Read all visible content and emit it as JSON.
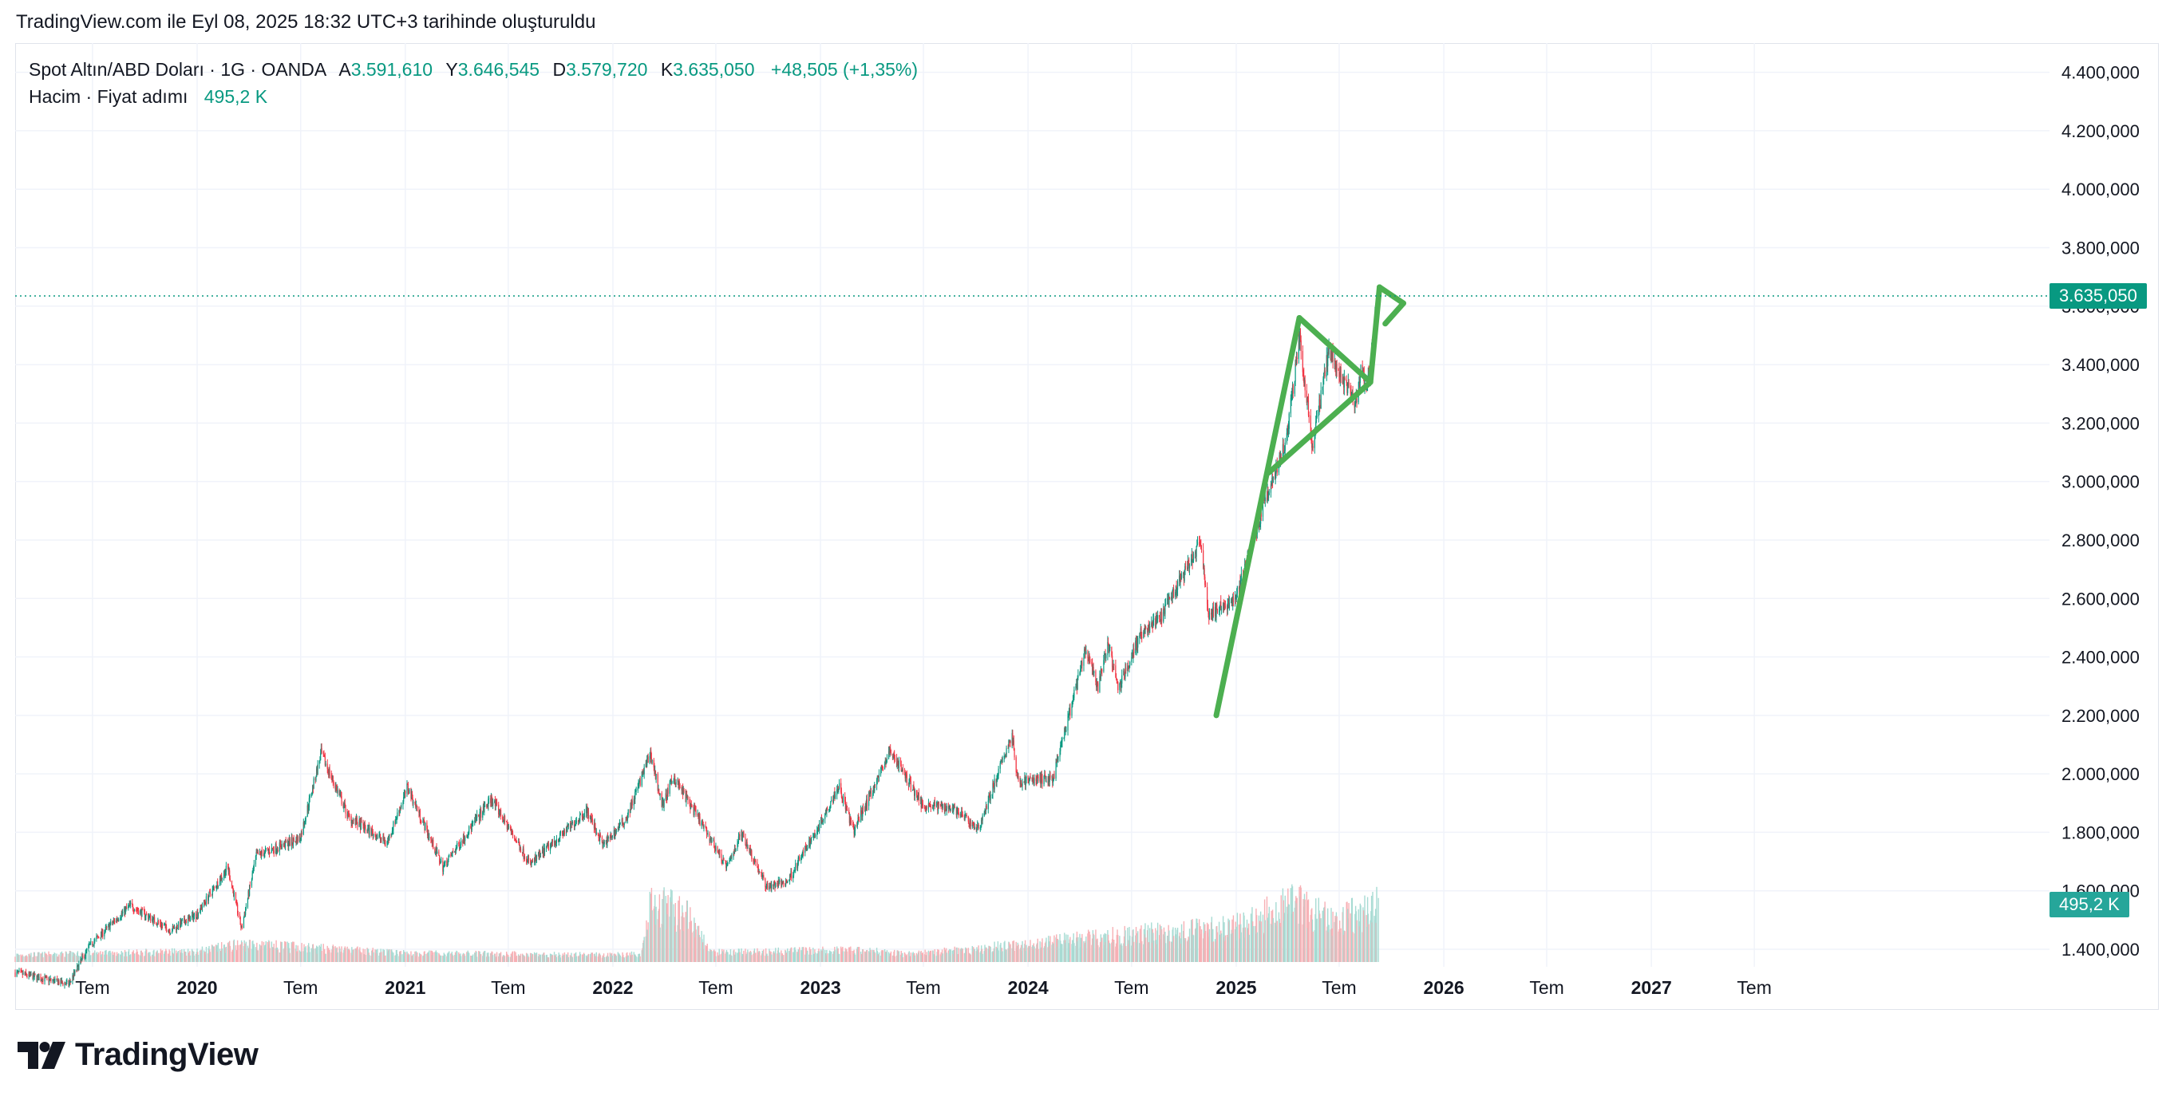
{
  "caption": "TradingView.com ile Eyl 08, 2025 18:32 UTC+3 tarihinde oluşturuldu",
  "legend": {
    "symbol": "Spot Altın/ABD Doları · 1G · OANDA",
    "open_label": "A",
    "open_value": "3.591,610",
    "high_label": "Y",
    "high_value": "3.646,545",
    "low_label": "D",
    "low_value": "3.579,720",
    "close_label": "K",
    "close_value": "3.635,050",
    "change": "+48,505 (+1,35%)",
    "volume_label": "Hacim · Fiyat adımı",
    "volume_value": "495,2 K"
  },
  "price_tag": "3.635,050",
  "volume_tag": "495,2 K",
  "brand": "TradingView",
  "colors": {
    "up": "#089981",
    "down": "#f23645",
    "volume_up": "#a7dbd3",
    "volume_down": "#f7b0b5",
    "drawing": "#4caf50",
    "grid": "#f0f3fa",
    "text": "#131722"
  },
  "chart_data": {
    "type": "candlestick",
    "title": "Spot Altın/ABD Doları · 1G · OANDA",
    "y_axis": {
      "ticks": [
        1400000,
        1600000,
        1800000,
        2000000,
        2200000,
        2400000,
        2600000,
        2800000,
        3000000,
        3200000,
        3400000,
        3600000,
        3800000,
        4000000,
        4200000,
        4400000
      ],
      "tick_labels": [
        "1.400,000",
        "1.600,000",
        "1.800,000",
        "2.000,000",
        "2.200,000",
        "2.400,000",
        "2.600,000",
        "2.800,000",
        "3.000,000",
        "3.200,000",
        "3.400,000",
        "3.600,000",
        "3.800,000",
        "4.000,000",
        "4.200,000",
        "4.400,000"
      ],
      "range": [
        1340,
        4500
      ],
      "position": "right"
    },
    "x_axis": {
      "range": [
        "2019-02-15",
        "2028-12-01"
      ],
      "ticks": [
        {
          "date": "2019-07-01",
          "label": "Tem",
          "bold": false
        },
        {
          "date": "2020-01-01",
          "label": "2020",
          "bold": true
        },
        {
          "date": "2020-07-01",
          "label": "Tem",
          "bold": false
        },
        {
          "date": "2021-01-01",
          "label": "2021",
          "bold": true
        },
        {
          "date": "2021-07-01",
          "label": "Tem",
          "bold": false
        },
        {
          "date": "2022-01-01",
          "label": "2022",
          "bold": true
        },
        {
          "date": "2022-07-01",
          "label": "Tem",
          "bold": false
        },
        {
          "date": "2023-01-01",
          "label": "2023",
          "bold": true
        },
        {
          "date": "2023-07-01",
          "label": "Tem",
          "bold": false
        },
        {
          "date": "2024-01-01",
          "label": "2024",
          "bold": true
        },
        {
          "date": "2024-07-01",
          "label": "Tem",
          "bold": false
        },
        {
          "date": "2025-01-01",
          "label": "2025",
          "bold": true
        },
        {
          "date": "2025-07-01",
          "label": "Tem",
          "bold": false
        },
        {
          "date": "2026-01-01",
          "label": "2026",
          "bold": true
        },
        {
          "date": "2026-07-01",
          "label": "Tem",
          "bold": false
        },
        {
          "date": "2027-01-01",
          "label": "2027",
          "bold": true
        },
        {
          "date": "2027-07-01",
          "label": "Tem",
          "bold": false
        }
      ]
    },
    "price_path": [
      [
        "2019-02-15",
        1320
      ],
      [
        "2019-05-20",
        1280
      ],
      [
        "2019-06-25",
        1410
      ],
      [
        "2019-09-05",
        1550
      ],
      [
        "2019-11-15",
        1465
      ],
      [
        "2019-12-31",
        1520
      ],
      [
        "2020-02-24",
        1680
      ],
      [
        "2020-03-19",
        1470
      ],
      [
        "2020-04-14",
        1720
      ],
      [
        "2020-06-30",
        1780
      ],
      [
        "2020-08-06",
        2070
      ],
      [
        "2020-09-24",
        1850
      ],
      [
        "2020-11-30",
        1765
      ],
      [
        "2021-01-05",
        1955
      ],
      [
        "2021-03-08",
        1680
      ],
      [
        "2021-06-01",
        1915
      ],
      [
        "2021-08-09",
        1690
      ],
      [
        "2021-11-16",
        1875
      ],
      [
        "2021-12-15",
        1755
      ],
      [
        "2022-01-25",
        1850
      ],
      [
        "2022-03-08",
        2070
      ],
      [
        "2022-03-29",
        1890
      ],
      [
        "2022-04-18",
        1990
      ],
      [
        "2022-07-21",
        1680
      ],
      [
        "2022-08-15",
        1800
      ],
      [
        "2022-09-28",
        1615
      ],
      [
        "2022-11-03",
        1630
      ],
      [
        "2022-12-30",
        1825
      ],
      [
        "2023-02-02",
        1960
      ],
      [
        "2023-02-28",
        1805
      ],
      [
        "2023-05-04",
        2080
      ],
      [
        "2023-06-29",
        1895
      ],
      [
        "2023-08-21",
        1885
      ],
      [
        "2023-10-05",
        1810
      ],
      [
        "2023-12-04",
        2135
      ],
      [
        "2023-12-13",
        1975
      ],
      [
        "2024-02-14",
        1985
      ],
      [
        "2024-04-12",
        2430
      ],
      [
        "2024-05-02",
        2290
      ],
      [
        "2024-05-20",
        2450
      ],
      [
        "2024-06-07",
        2290
      ],
      [
        "2024-07-17",
        2480
      ],
      [
        "2024-08-20",
        2530
      ],
      [
        "2024-10-30",
        2790
      ],
      [
        "2024-11-14",
        2540
      ],
      [
        "2024-12-30",
        2600
      ],
      [
        "2025-02-24",
        2950
      ],
      [
        "2025-03-31",
        3150
      ],
      [
        "2025-04-22",
        3500
      ],
      [
        "2025-05-15",
        3120
      ],
      [
        "2025-06-13",
        3450
      ],
      [
        "2025-07-30",
        3270
      ],
      [
        "2025-08-08",
        3390
      ],
      [
        "2025-08-20",
        3320
      ],
      [
        "2025-09-08",
        3635
      ]
    ],
    "volume_path": [
      [
        "2019-02-15",
        0.12
      ],
      [
        "2019-12-31",
        0.18
      ],
      [
        "2020-03-19",
        0.3
      ],
      [
        "2020-12-31",
        0.15
      ],
      [
        "2021-12-31",
        0.12
      ],
      [
        "2022-02-20",
        0.14
      ],
      [
        "2022-03-08",
        1.0
      ],
      [
        "2022-05-15",
        0.8
      ],
      [
        "2022-06-20",
        0.16
      ],
      [
        "2023-03-15",
        0.2
      ],
      [
        "2023-06-01",
        0.13
      ],
      [
        "2023-10-01",
        0.22
      ],
      [
        "2024-04-12",
        0.4
      ],
      [
        "2024-10-30",
        0.55
      ],
      [
        "2025-01-15",
        0.62
      ],
      [
        "2025-04-15",
        1.05
      ],
      [
        "2025-06-15",
        0.7
      ],
      [
        "2025-08-20",
        0.85
      ],
      [
        "2025-09-08",
        1.0
      ]
    ],
    "volume_axis": {
      "max_value_k": 495.2
    },
    "last_price": 3635.05,
    "last_volume_k": 495.2,
    "drawings": [
      {
        "name": "flagpole-line",
        "points": [
          [
            "2024-11-27",
            2200
          ],
          [
            "2025-04-22",
            3560
          ]
        ]
      },
      {
        "name": "pennant-upper-line",
        "points": [
          [
            "2025-04-22",
            3560
          ],
          [
            "2025-08-25",
            3340
          ]
        ]
      },
      {
        "name": "pennant-lower-line",
        "points": [
          [
            "2025-02-27",
            3030
          ],
          [
            "2025-08-25",
            3340
          ]
        ]
      },
      {
        "name": "breakout-line",
        "points": [
          [
            "2025-08-25",
            3340
          ],
          [
            "2025-09-10",
            3665
          ]
        ]
      },
      {
        "name": "arrow-head-upper",
        "points": [
          [
            "2025-09-10",
            3665
          ],
          [
            "2025-10-22",
            3610
          ]
        ]
      },
      {
        "name": "arrow-head-lower",
        "points": [
          [
            "2025-09-20",
            3540
          ],
          [
            "2025-10-22",
            3610
          ]
        ]
      }
    ]
  }
}
